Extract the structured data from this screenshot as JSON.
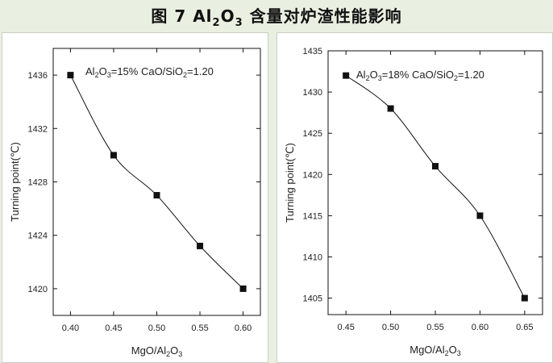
{
  "figure": {
    "title_prefix": "图 7  Al",
    "title_sub1": "2",
    "title_mid": "O",
    "title_sub2": "3",
    "title_suffix": " 含量对炉渣性能影响"
  },
  "chart_data": [
    {
      "type": "scatter",
      "annotation": "Al2O3=15%   CaO/SiO2=1.20",
      "xlabel": "MgO/Al2O3",
      "ylabel": "Turning point(℃)",
      "xlim": [
        0.38,
        0.62
      ],
      "ylim": [
        1418,
        1438
      ],
      "x_ticks": [
        "0.40",
        "0.45",
        "0.50",
        "0.55",
        "0.60"
      ],
      "y_ticks": [
        "1420",
        "1424",
        "1428",
        "1432",
        "1436"
      ],
      "x": [
        0.4,
        0.45,
        0.5,
        0.55,
        0.6
      ],
      "y": [
        1436,
        1430,
        1427,
        1423.2,
        1420
      ],
      "fit_curve": true,
      "grid": false,
      "colors": {
        "marker": "#111111",
        "line": "#111111"
      }
    },
    {
      "type": "scatter",
      "annotation": "Al2O3=18%   CaO/SiO2=1.20",
      "xlabel": "MgO/Al2O3",
      "ylabel": "Turning point(℃)",
      "xlim": [
        0.43,
        0.67
      ],
      "ylim": [
        1403,
        1435
      ],
      "x_ticks": [
        "0.45",
        "0.50",
        "0.55",
        "0.60",
        "0.65"
      ],
      "y_ticks": [
        "1405",
        "1410",
        "1415",
        "1420",
        "1425",
        "1430",
        "1435"
      ],
      "x": [
        0.45,
        0.5,
        0.55,
        0.6,
        0.65
      ],
      "y": [
        1432,
        1428,
        1421,
        1415,
        1405
      ],
      "fit_curve": true,
      "grid": false,
      "colors": {
        "marker": "#111111",
        "line": "#111111"
      }
    }
  ]
}
